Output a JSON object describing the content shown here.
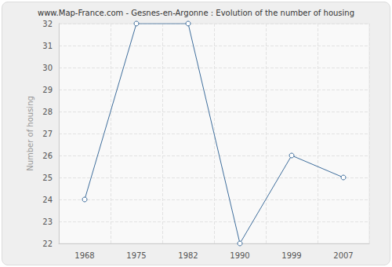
{
  "chart_data": {
    "type": "line",
    "title": "www.Map-France.com - Gesnes-en-Argonne : Evolution of the number of housing",
    "ylabel": "Number of housing",
    "categories": [
      "1968",
      "1975",
      "1982",
      "1990",
      "1999",
      "2007"
    ],
    "values": [
      24,
      32,
      32,
      22,
      26,
      25
    ],
    "color": "#3f6e9c",
    "marker": "circle",
    "ylim": [
      22,
      32
    ],
    "yticks": [
      22,
      23,
      24,
      25,
      26,
      27,
      28,
      29,
      30,
      31,
      32
    ],
    "grid": true
  }
}
